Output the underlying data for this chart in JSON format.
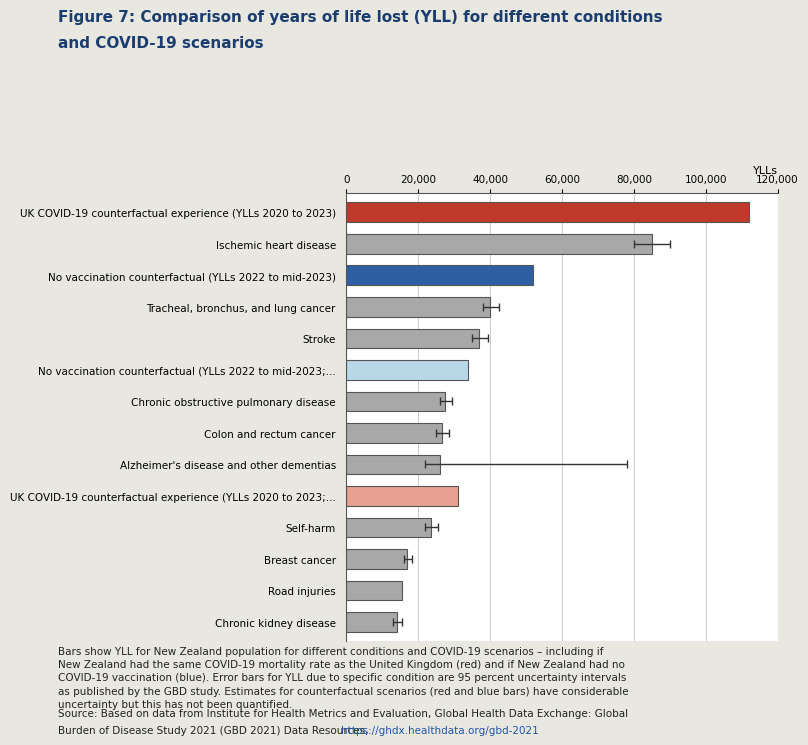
{
  "title_line1": "Figure 7: Comparison of years of life lost (YLL) for different conditions",
  "title_line2": "and COVID-19 scenarios",
  "title_color": "#1a3c6e",
  "background_color": "#e8e8e0",
  "plot_bg_color": "#ffffff",
  "ylabel_axis": "YLLs",
  "categories": [
    "UK COVID-19 counterfactual experience (YLLs 2020 to 2023)",
    "Ischemic heart disease",
    "No vaccination counterfactual (YLLs 2022 to mid-2023)",
    "Tracheal, bronchus, and lung cancer",
    "Stroke",
    "No vaccination counterfactual (YLLs 2022 to mid-2023;...",
    "Chronic obstructive pulmonary disease",
    "Colon and rectum cancer",
    "Alzheimer's disease and other dementias",
    "UK COVID-19 counterfactual experience (YLLs 2020 to 2023;...",
    "Self-harm",
    "Breast cancer",
    "Road injuries",
    "Chronic kidney disease"
  ],
  "values": [
    112000,
    85000,
    52000,
    40000,
    37000,
    34000,
    27500,
    26500,
    26000,
    31000,
    23500,
    17000,
    15500,
    14000
  ],
  "error_low": [
    null,
    5000,
    null,
    2000,
    2000,
    null,
    1500,
    1500,
    4000,
    null,
    1500,
    1000,
    null,
    1000
  ],
  "error_high": [
    null,
    5000,
    null,
    2500,
    2500,
    null,
    2000,
    2000,
    52000,
    null,
    2000,
    1200,
    null,
    1500
  ],
  "bar_colors": [
    "#c0392b",
    "#a8a8a8",
    "#2e5fa3",
    "#a8a8a8",
    "#a8a8a8",
    "#b8d8e8",
    "#a8a8a8",
    "#a8a8a8",
    "#a8a8a8",
    "#e8a090",
    "#a8a8a8",
    "#a8a8a8",
    "#a8a8a8",
    "#a8a8a8"
  ],
  "bar_edge_color": "#555555",
  "xlim": [
    0,
    120000
  ],
  "xticks": [
    0,
    20000,
    40000,
    60000,
    80000,
    100000,
    120000
  ],
  "xtick_labels": [
    "0",
    "20,000",
    "40,000",
    "60,000",
    "80,000",
    "100,000",
    "120,000"
  ],
  "caption": "Bars show YLL for New Zealand population for different conditions and COVID-19 scenarios – including if\nNew Zealand had the same COVID-19 mortality rate as the United Kingdom (red) and if New Zealand had no\nCOVID-19 vaccination (blue). Error bars for YLL due to specific condition are 95 percent uncertainty intervals\nas published by the GBD study. Estimates for counterfactual scenarios (red and blue bars) have considerable\nuncertainty but this has not been quantified.",
  "source_text_plain": "Source: Based on data from Institute for Health Metrics and Evaluation, Global Health Data Exchange: Global\nBurden of Disease Study 2021 (GBD 2021) Data Resources, ",
  "source_link": "https://ghdx.healthdata.org/gbd-2021"
}
